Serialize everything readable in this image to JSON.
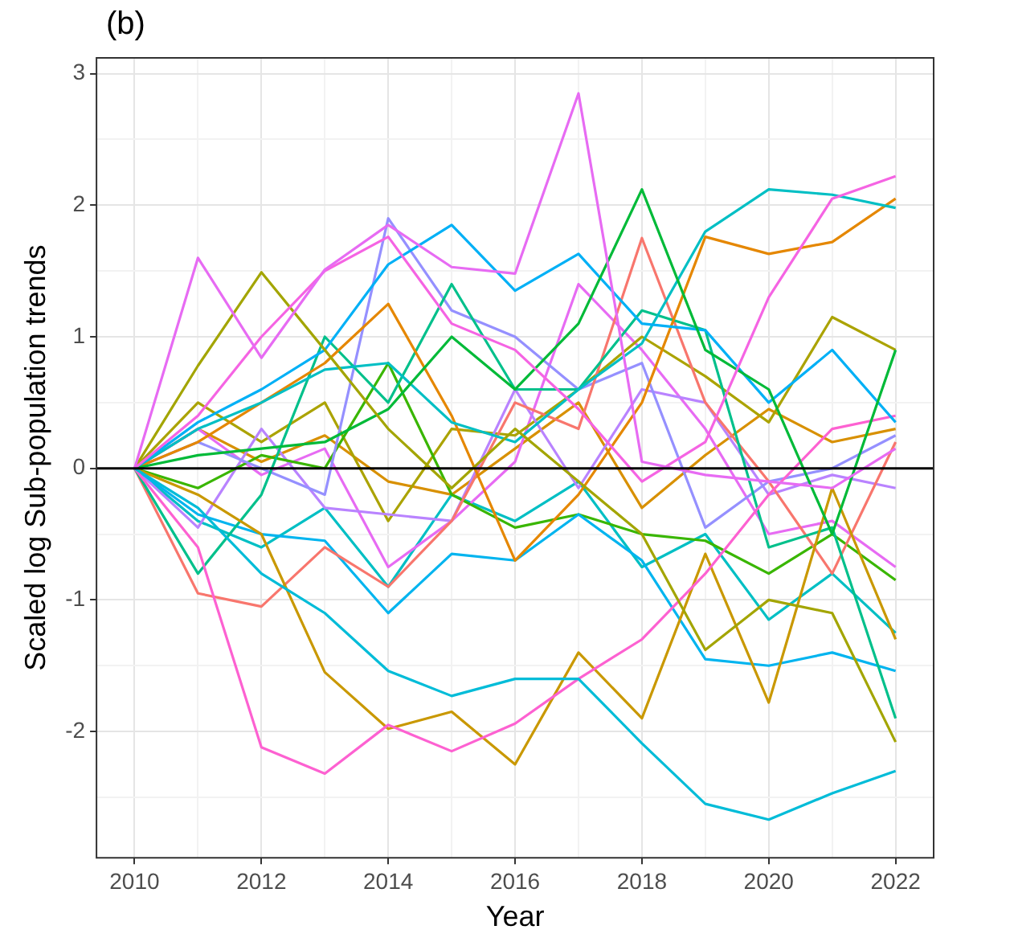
{
  "chart_data": {
    "type": "line",
    "title": "(b)",
    "xlabel": "Year",
    "ylabel": "Scaled log Sub-population trends",
    "x": [
      2010,
      2011,
      2012,
      2013,
      2014,
      2015,
      2016,
      2017,
      2018,
      2019,
      2020,
      2021,
      2022
    ],
    "xlim": [
      2009.4,
      2022.6
    ],
    "xticks": [
      2010,
      {
        "value": 2011,
        "label": null
      },
      2012,
      {
        "value": 2013,
        "label": null
      },
      2014,
      {
        "value": 2015,
        "label": null
      },
      2016,
      {
        "value": 2017,
        "label": null
      },
      2018,
      {
        "value": 2019,
        "label": null
      },
      2020,
      {
        "value": 2021,
        "label": null
      },
      2022
    ],
    "ylim": [
      -2.96,
      3.12
    ],
    "yticks": [
      {
        "value": -2.5,
        "label": null
      },
      -2,
      {
        "value": -1.5,
        "label": null
      },
      -1,
      {
        "value": -0.5,
        "label": null
      },
      0,
      {
        "value": 0.5,
        "label": null
      },
      1,
      {
        "value": 1.5,
        "label": null
      },
      2,
      {
        "value": 2.5,
        "label": null
      },
      3
    ],
    "grid": true,
    "legend": false,
    "marker": "none",
    "line_style": "solid",
    "ref_lines": [
      {
        "axis": "y",
        "value": 0,
        "color": "#000000"
      }
    ],
    "series": [
      {
        "color": "#e76bf3",
        "values": [
          0,
          1.6,
          0.84,
          1.51,
          1.85,
          1.53,
          1.48,
          2.85,
          0.05,
          -0.05,
          -0.1,
          -0.15,
          0.15
        ]
      },
      {
        "color": "#f564e3",
        "values": [
          0,
          0.4,
          1.0,
          1.5,
          1.76,
          1.1,
          0.9,
          0.45,
          -0.1,
          0.2,
          1.3,
          2.05,
          2.22
        ]
      },
      {
        "color": "#a3a500",
        "values": [
          0,
          0.78,
          1.49,
          0.9,
          0.3,
          -0.15,
          0.3,
          -0.1,
          -0.5,
          -1.38,
          -1.0,
          -1.1,
          -2.08
        ]
      },
      {
        "color": "#00ba38",
        "values": [
          0,
          0.1,
          0.15,
          0.2,
          0.45,
          1.0,
          0.6,
          1.1,
          2.12,
          0.9,
          0.6,
          -0.5,
          0.9
        ]
      },
      {
        "color": "#00b0f6",
        "values": [
          0,
          0.35,
          0.6,
          0.9,
          1.55,
          1.85,
          1.35,
          1.63,
          1.1,
          1.05,
          0.5,
          0.9,
          0.35
        ]
      },
      {
        "color": "#00bfc4",
        "values": [
          0,
          0.3,
          0.5,
          0.75,
          0.8,
          0.35,
          0.2,
          0.6,
          0.95,
          1.8,
          2.12,
          2.08,
          1.98
        ]
      },
      {
        "color": "#e58700",
        "values": [
          0,
          0.2,
          0.5,
          0.8,
          1.25,
          0.4,
          -0.7,
          -0.2,
          0.5,
          1.76,
          1.63,
          1.72,
          2.05
        ]
      },
      {
        "color": "#00bcd8",
        "values": [
          0,
          -0.3,
          -0.8,
          -1.1,
          -1.54,
          -1.73,
          -1.6,
          -1.6,
          -2.09,
          -2.55,
          -2.67,
          -2.47,
          -2.3
        ]
      },
      {
        "color": "#fd61d1",
        "values": [
          0,
          -0.6,
          -2.12,
          -2.32,
          -1.95,
          -2.15,
          -1.94,
          -1.6,
          -1.3,
          -0.8,
          -0.2,
          0.3,
          0.4
        ]
      },
      {
        "color": "#c99800",
        "values": [
          0,
          -0.2,
          -0.5,
          -1.55,
          -1.98,
          -1.85,
          -2.25,
          -1.4,
          -1.9,
          -0.65,
          -1.78,
          -0.15,
          -1.3
        ]
      },
      {
        "color": "#00c08b",
        "values": [
          0,
          -0.8,
          -0.2,
          1.0,
          0.5,
          1.4,
          0.6,
          0.6,
          1.2,
          1.05,
          -0.6,
          -0.45,
          -1.9
        ]
      },
      {
        "color": "#f8766d",
        "values": [
          0,
          -0.95,
          -1.05,
          -0.6,
          -0.9,
          -0.4,
          0.5,
          0.3,
          1.75,
          0.5,
          -0.1,
          -0.8,
          0.2
        ]
      },
      {
        "color": "#9590ff",
        "values": [
          0,
          0.2,
          0.0,
          -0.2,
          1.9,
          1.2,
          1.0,
          0.6,
          0.8,
          -0.45,
          -0.1,
          0.0,
          0.25
        ]
      },
      {
        "color": "#00b4ef",
        "values": [
          0,
          -0.35,
          -0.5,
          -0.55,
          -1.1,
          -0.65,
          -0.7,
          -0.35,
          -0.7,
          -1.45,
          -1.5,
          -1.4,
          -1.54
        ]
      },
      {
        "color": "#39b600",
        "values": [
          0,
          -0.15,
          0.1,
          0.0,
          0.8,
          -0.2,
          -0.45,
          -0.35,
          -0.5,
          -0.55,
          -0.8,
          -0.5,
          -0.85
        ]
      },
      {
        "color": "#b983ff",
        "values": [
          0,
          -0.45,
          0.3,
          -0.3,
          -0.35,
          -0.4,
          0.6,
          -0.15,
          0.6,
          0.5,
          -0.2,
          -0.05,
          -0.15
        ]
      },
      {
        "color": "#aba300",
        "values": [
          0,
          0.5,
          0.2,
          0.5,
          -0.4,
          0.3,
          0.25,
          0.6,
          1.0,
          0.7,
          0.35,
          1.15,
          0.9
        ]
      },
      {
        "color": "#e76bf3",
        "values": [
          0,
          0.3,
          -0.05,
          0.15,
          -0.75,
          -0.4,
          0.05,
          1.4,
          0.9,
          0.3,
          -0.5,
          -0.4,
          -0.75
        ]
      },
      {
        "color": "#00bfc4",
        "values": [
          0,
          -0.4,
          -0.6,
          -0.3,
          -0.9,
          -0.2,
          -0.4,
          -0.1,
          -0.75,
          -0.5,
          -1.15,
          -0.8,
          -1.25
        ]
      },
      {
        "color": "#d89000",
        "values": [
          0,
          0.3,
          0.05,
          0.25,
          -0.1,
          -0.2,
          0.15,
          0.5,
          -0.3,
          0.1,
          0.45,
          0.2,
          0.3
        ]
      }
    ]
  }
}
